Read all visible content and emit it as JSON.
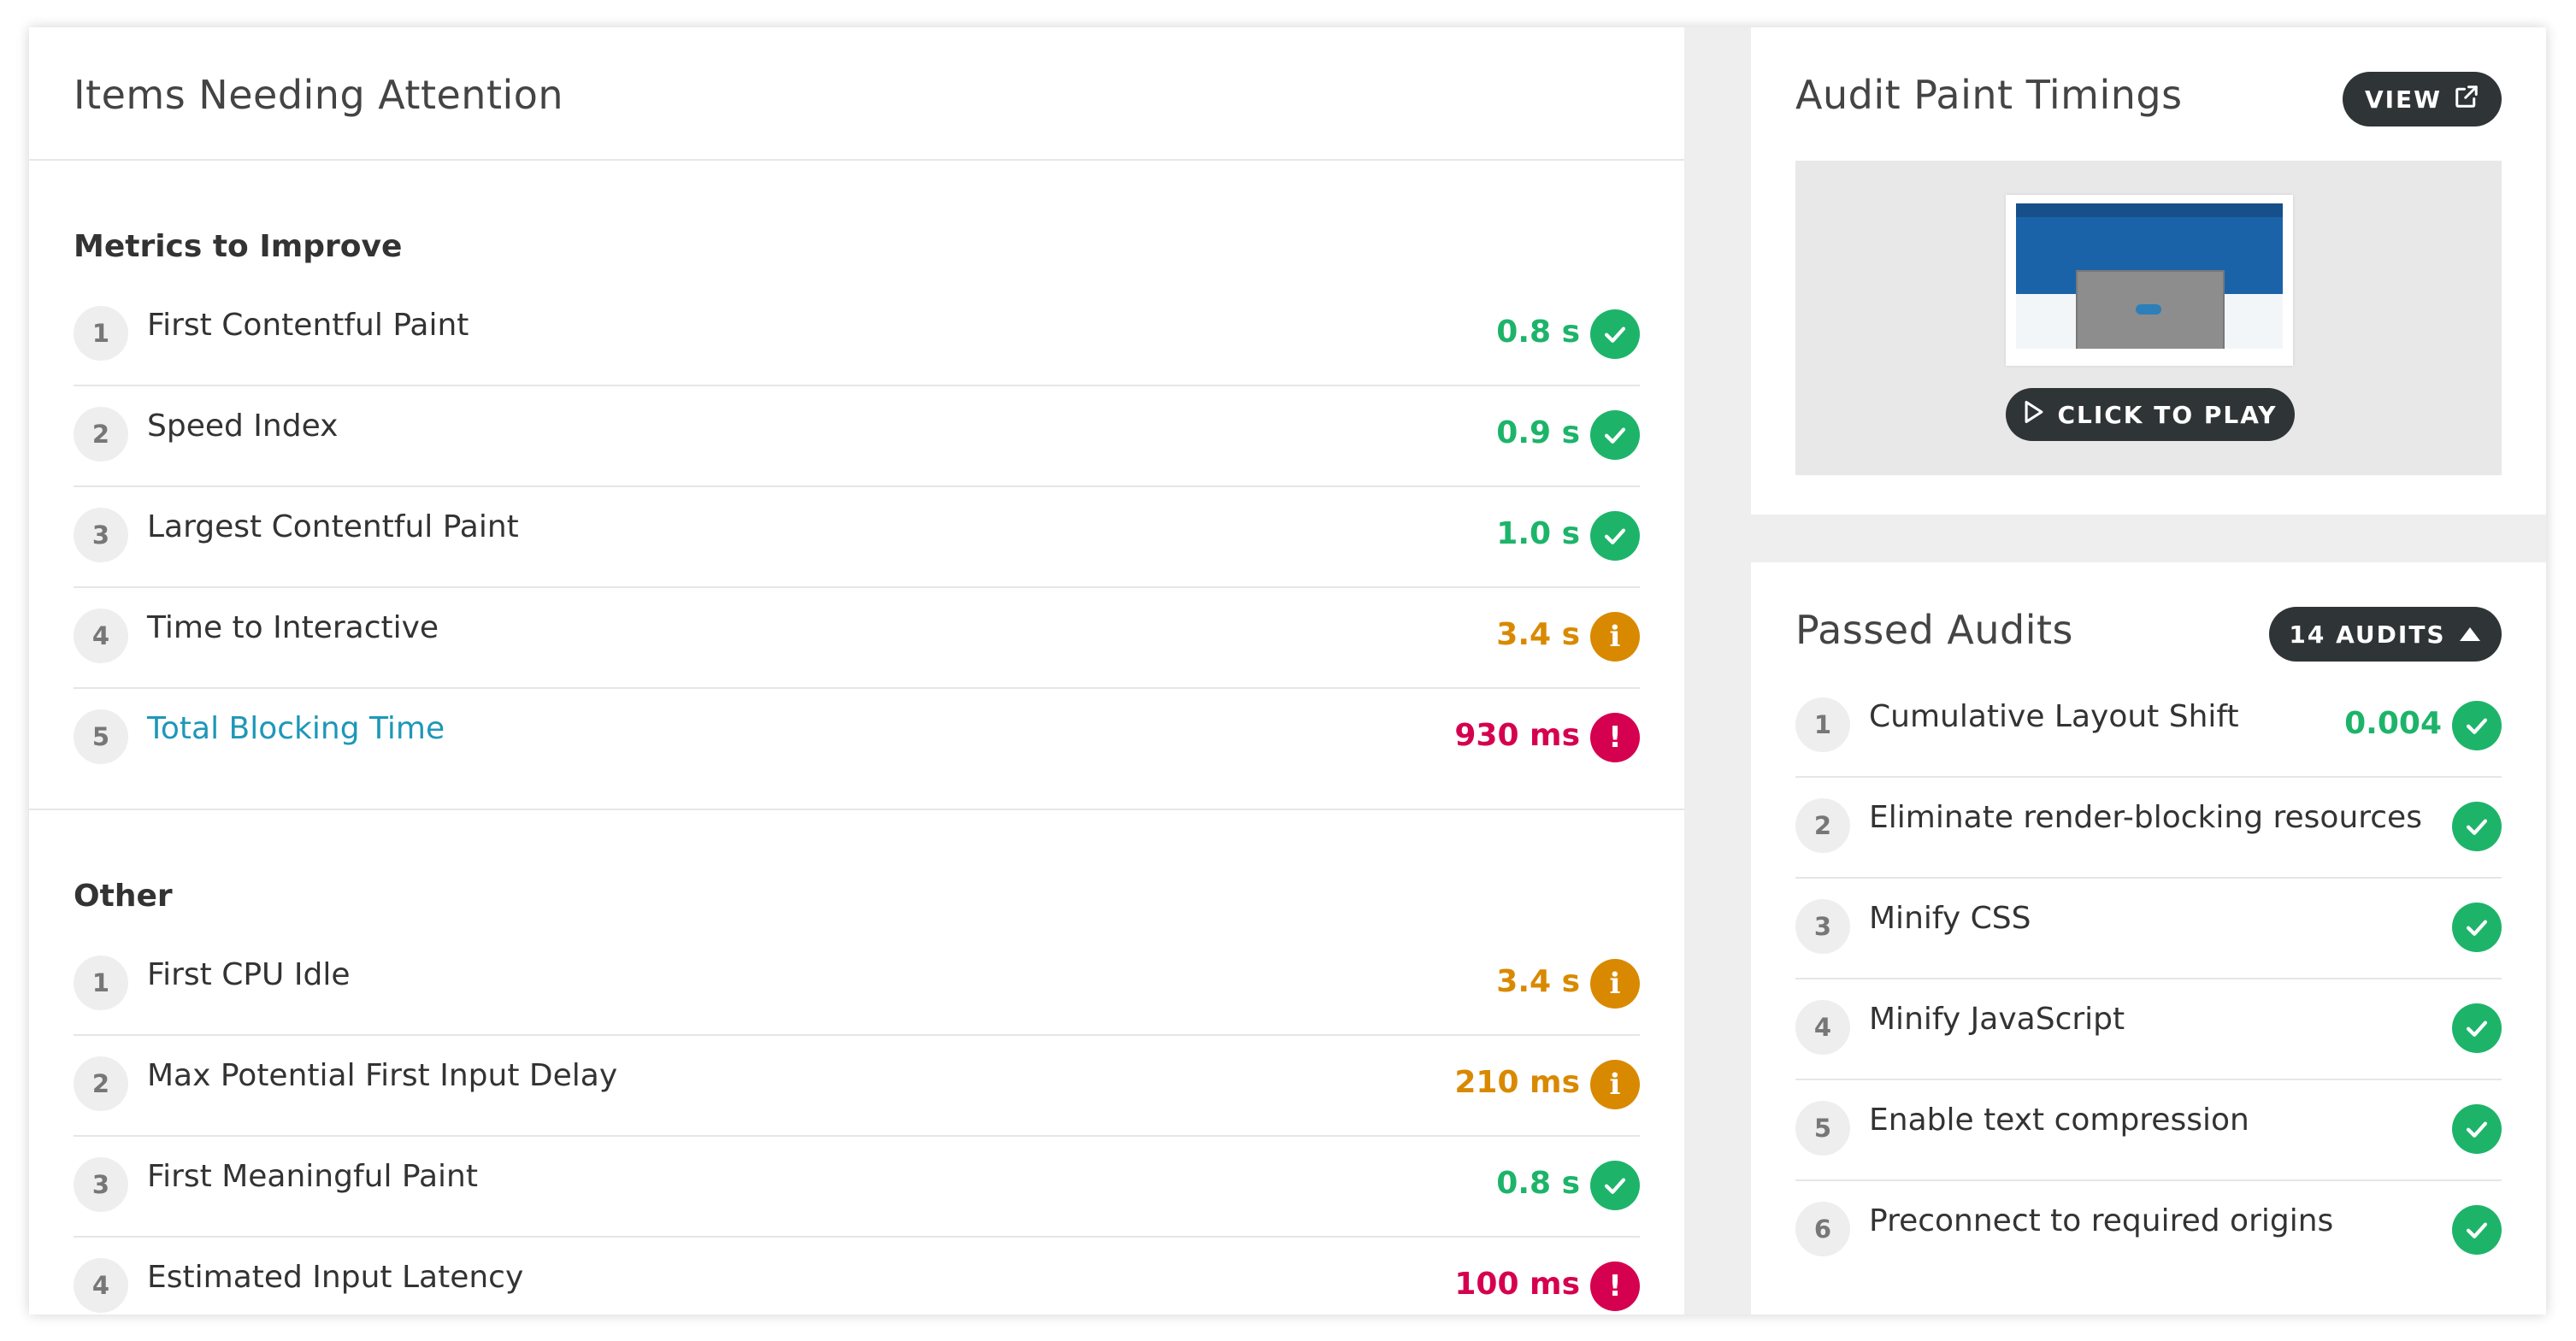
{
  "attention": {
    "title": "Items Needing Attention",
    "metrics_heading": "Metrics to Improve",
    "metrics": [
      {
        "num": "1",
        "label": "First Contentful Paint",
        "value": "0.8 s",
        "status": "good"
      },
      {
        "num": "2",
        "label": "Speed Index",
        "value": "0.9 s",
        "status": "good"
      },
      {
        "num": "3",
        "label": "Largest Contentful Paint",
        "value": "1.0 s",
        "status": "good"
      },
      {
        "num": "4",
        "label": "Time to Interactive",
        "value": "3.4 s",
        "status": "average"
      },
      {
        "num": "5",
        "label": "Total Blocking Time",
        "value": "930 ms",
        "status": "poor"
      }
    ],
    "other_heading": "Other",
    "other": [
      {
        "num": "1",
        "label": "First CPU Idle",
        "value": "3.4 s",
        "status": "average"
      },
      {
        "num": "2",
        "label": "Max Potential First Input Delay",
        "value": "210 ms",
        "status": "average"
      },
      {
        "num": "3",
        "label": "First Meaningful Paint",
        "value": "0.8 s",
        "status": "good"
      },
      {
        "num": "4",
        "label": "Estimated Input Latency",
        "value": "100 ms",
        "status": "poor"
      }
    ]
  },
  "paint_timings": {
    "title": "Audit Paint Timings",
    "view_label": "VIEW",
    "play_label": "CLICK TO PLAY"
  },
  "passed_audits": {
    "title": "Passed Audits",
    "count_label": "14 AUDITS",
    "items": [
      {
        "num": "1",
        "label": "Cumulative Layout Shift",
        "value": "0.004"
      },
      {
        "num": "2",
        "label": "Eliminate render-blocking resources",
        "value": ""
      },
      {
        "num": "3",
        "label": "Minify CSS",
        "value": ""
      },
      {
        "num": "4",
        "label": "Minify JavaScript",
        "value": ""
      },
      {
        "num": "5",
        "label": "Enable text compression",
        "value": ""
      },
      {
        "num": "6",
        "label": "Preconnect to required origins",
        "value": ""
      }
    ]
  },
  "colors": {
    "good": "#1db46a",
    "average": "#d98900",
    "poor": "#d5004f",
    "link": "#1e97b9",
    "pill": "#2f3437"
  },
  "icons": {
    "good": "check-icon",
    "average": "info-icon",
    "poor": "exclamation-icon",
    "view": "external-link-icon",
    "play": "play-icon",
    "collapse": "caret-up-icon"
  }
}
